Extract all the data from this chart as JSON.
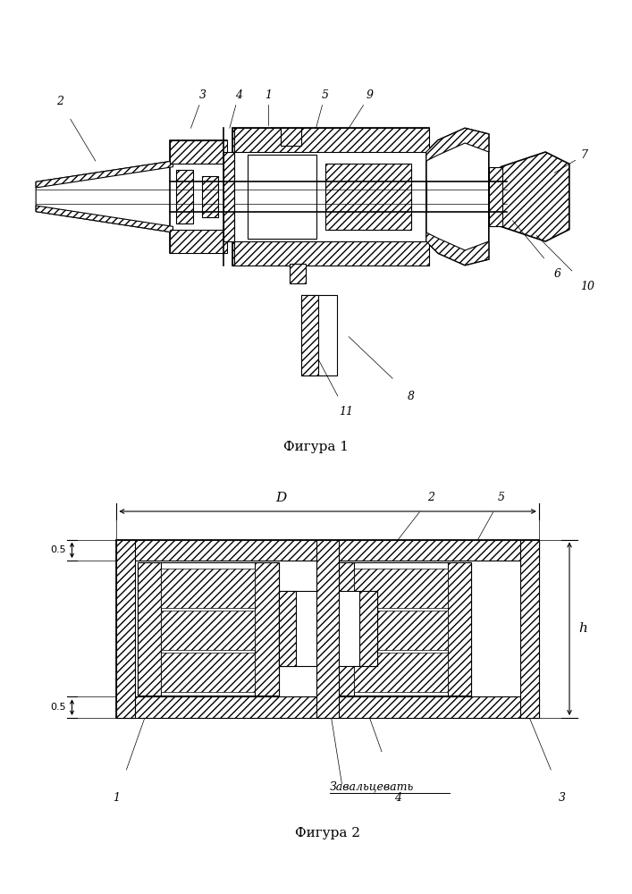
{
  "fig1_caption": "Фигура 1",
  "fig2_caption": "Фигура 2",
  "background_color": "#ffffff",
  "line_color": "#000000",
  "hatch_pattern": "////",
  "zavaltcevat": "Завальцевать"
}
